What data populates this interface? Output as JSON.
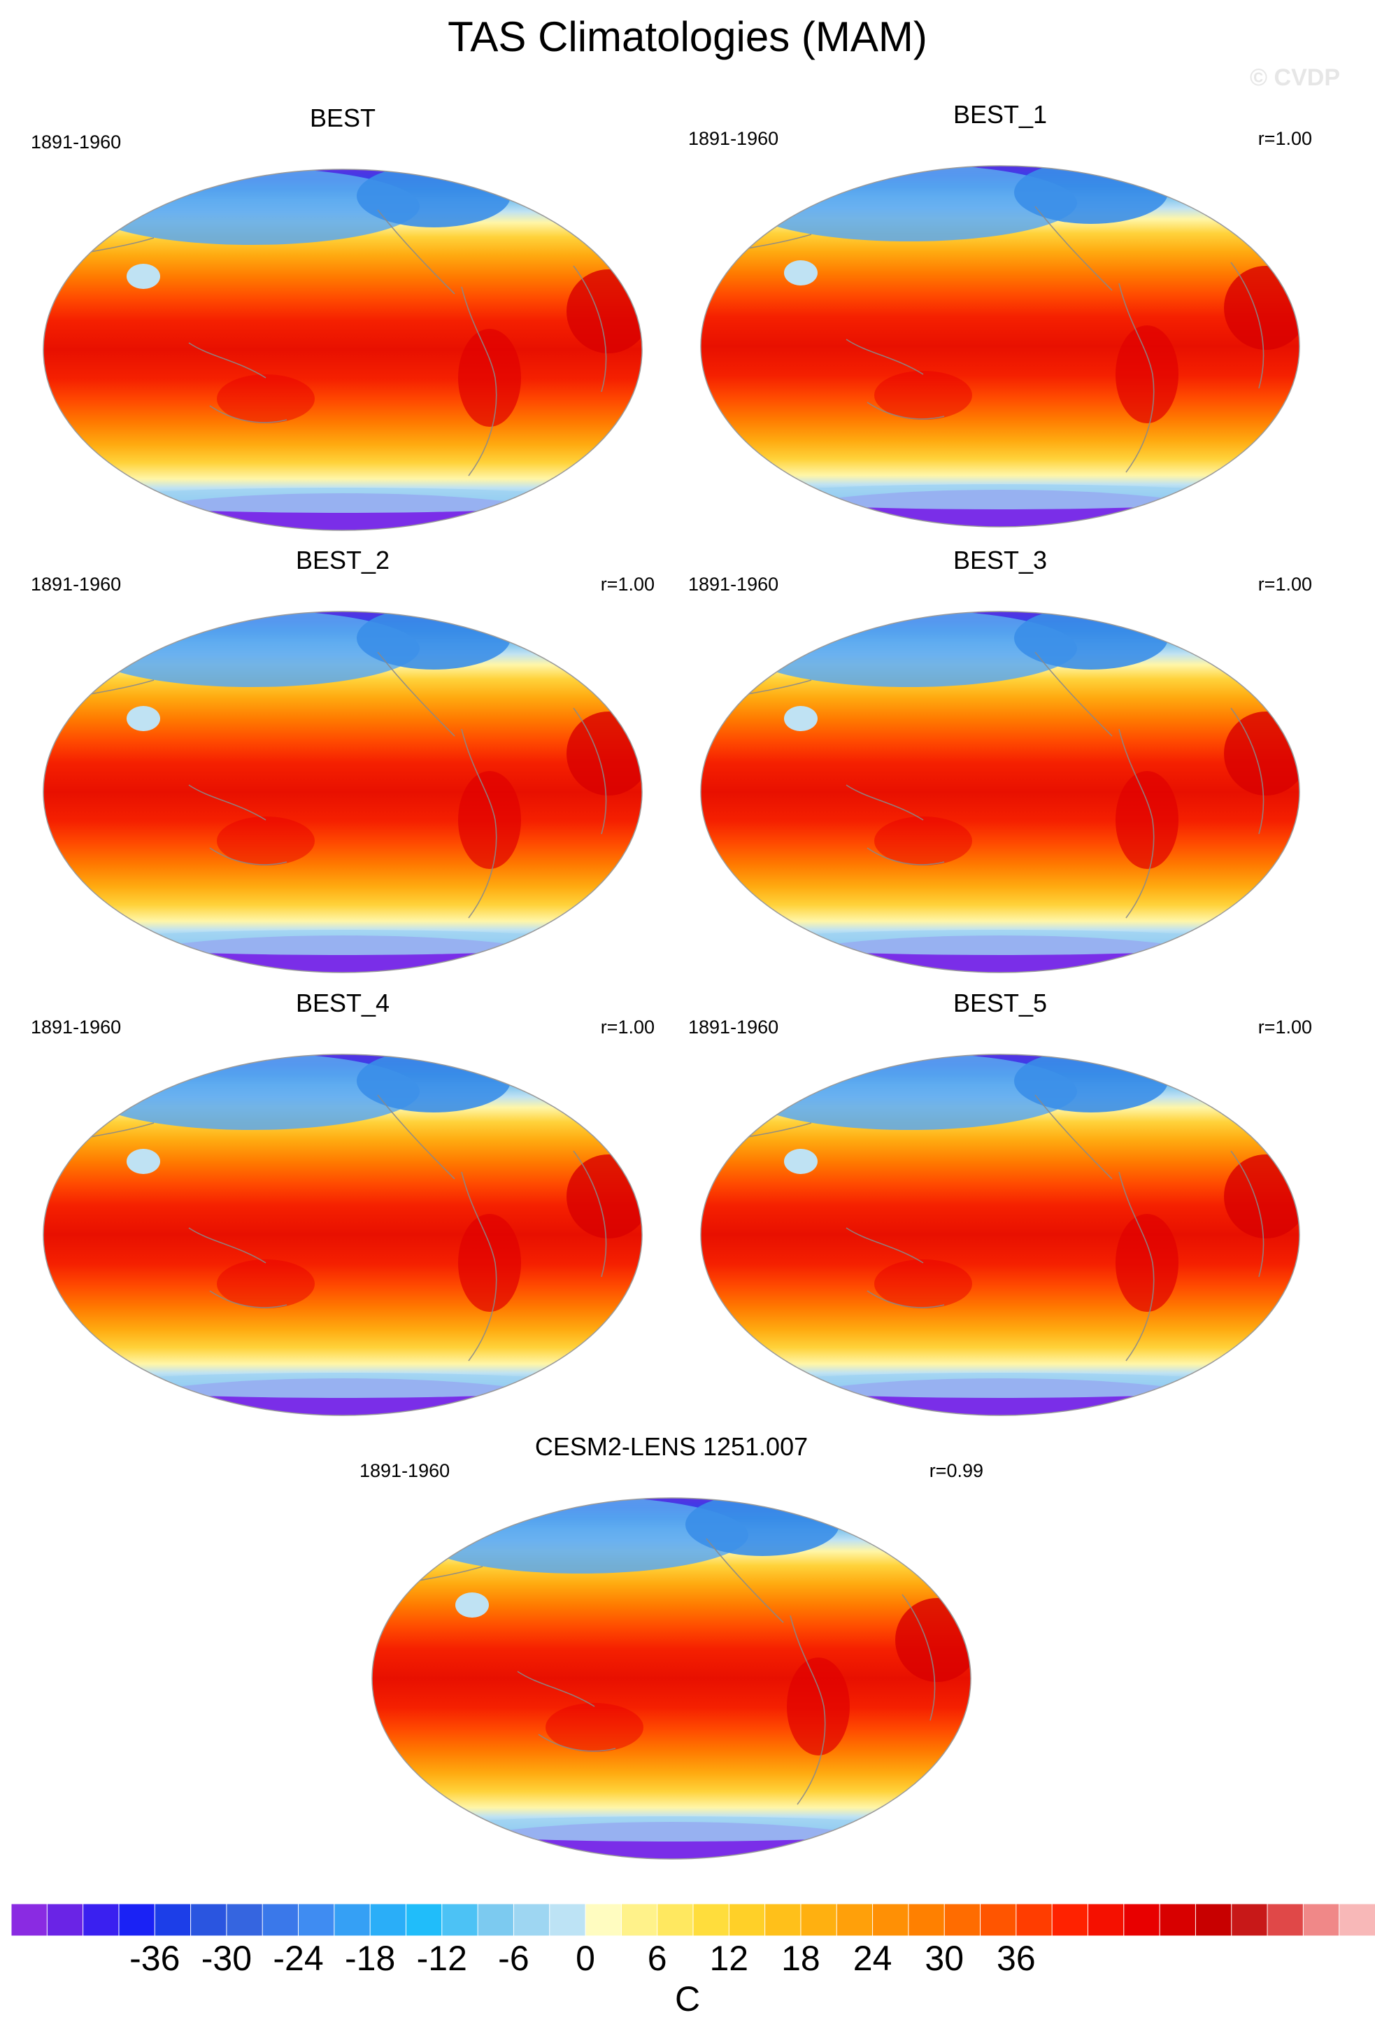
{
  "title": "TAS Climatologies (MAM)",
  "copyright": "© CVDP",
  "panels": [
    {
      "name": "BEST",
      "period": "1891-1960",
      "corr": ""
    },
    {
      "name": "BEST_1",
      "period": "1891-1960",
      "corr": "r=1.00"
    },
    {
      "name": "BEST_2",
      "period": "1891-1960",
      "corr": "r=1.00"
    },
    {
      "name": "BEST_3",
      "period": "1891-1960",
      "corr": "r=1.00"
    },
    {
      "name": "BEST_4",
      "period": "1891-1960",
      "corr": "r=1.00"
    },
    {
      "name": "BEST_5",
      "period": "1891-1960",
      "corr": "r=1.00"
    },
    {
      "name": "CESM2-LENS 1251.007",
      "period": "1891-1960",
      "corr": "r=0.99"
    }
  ],
  "colorbar": {
    "unit": "C",
    "tick_labels": [
      "-36",
      "-30",
      "-24",
      "-18",
      "-12",
      "-6",
      "0",
      "6",
      "12",
      "18",
      "24",
      "30",
      "36"
    ],
    "colors": [
      "#8a2be2",
      "#6a24e6",
      "#3a20f0",
      "#1a22f5",
      "#1c3ee8",
      "#2a55e0",
      "#3565e0",
      "#3a78ea",
      "#3f8cf2",
      "#35a0f5",
      "#2aaef8",
      "#20bdfa",
      "#4cc2f5",
      "#7ccaf0",
      "#9ed6f2",
      "#bde3f5",
      "#fffcc0",
      "#fff28a",
      "#ffe860",
      "#ffdd3c",
      "#ffd028",
      "#ffc01a",
      "#ffb010",
      "#ffa00a",
      "#ff9005",
      "#ff8000",
      "#ff6c00",
      "#ff5500",
      "#ff3d00",
      "#ff2200",
      "#f51000",
      "#e80000",
      "#d80000",
      "#c80000",
      "#c81818",
      "#e04848",
      "#f08888",
      "#f8b8b8"
    ]
  }
}
